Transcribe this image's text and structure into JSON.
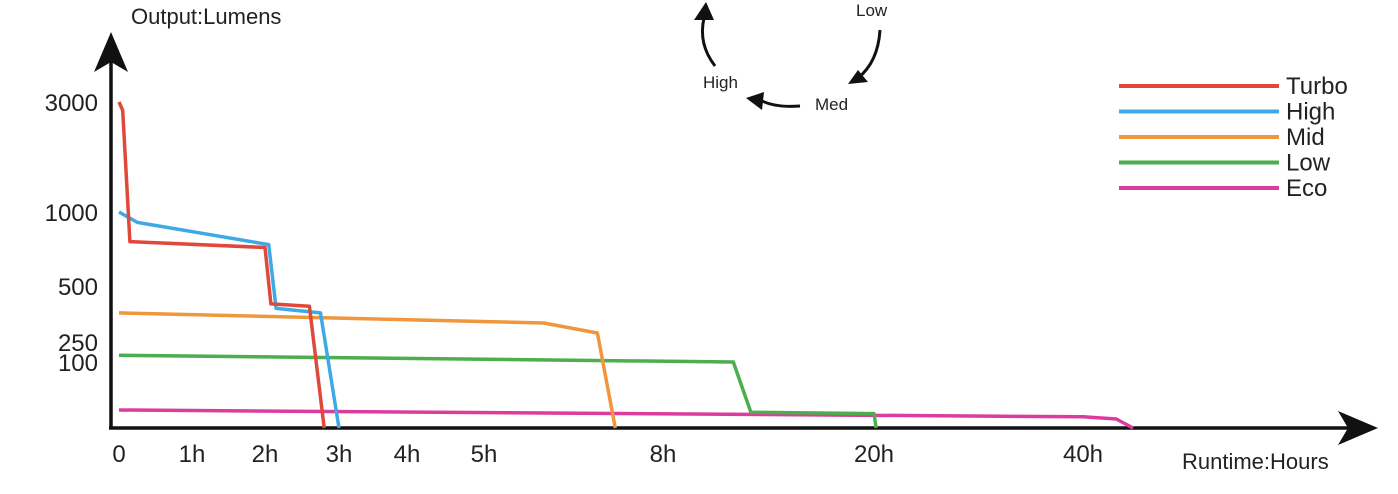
{
  "chart_data": {
    "type": "line",
    "ylabel": "Output:Lumens",
    "xlabel": "Runtime:Hours",
    "y_scale": "nonlinear",
    "y_ticks": [
      {
        "value": 3000,
        "label": "3000"
      },
      {
        "value": 1000,
        "label": "1000"
      },
      {
        "value": 500,
        "label": "500"
      },
      {
        "value": 250,
        "label": "250"
      },
      {
        "value": 100,
        "label": "100"
      }
    ],
    "x_scale": "nonlinear",
    "x_ticks": [
      {
        "value": 0,
        "label": "0"
      },
      {
        "value": 1,
        "label": "1h"
      },
      {
        "value": 2,
        "label": "2h"
      },
      {
        "value": 3,
        "label": "3h"
      },
      {
        "value": 4,
        "label": "4h"
      },
      {
        "value": 5,
        "label": "5h"
      },
      {
        "value": 8,
        "label": "8h"
      },
      {
        "value": 20,
        "label": "20h"
      },
      {
        "value": 40,
        "label": "40h"
      }
    ],
    "grid": false,
    "legend_position": "top-right",
    "series": [
      {
        "name": "Turbo",
        "color": "#e0483a",
        "points": [
          [
            0,
            3000
          ],
          [
            0.05,
            2850
          ],
          [
            0.15,
            800
          ],
          [
            2.0,
            760
          ],
          [
            2.08,
            420
          ],
          [
            2.6,
            410
          ],
          [
            2.8,
            0
          ]
        ]
      },
      {
        "name": "High",
        "color": "#3fa9e6",
        "points": [
          [
            0,
            1000
          ],
          [
            0.25,
            930
          ],
          [
            2.05,
            780
          ],
          [
            2.15,
            400
          ],
          [
            2.75,
            380
          ],
          [
            3.0,
            0
          ]
        ]
      },
      {
        "name": "Mid",
        "color": "#f0963c",
        "points": [
          [
            0,
            380
          ],
          [
            6.0,
            335
          ],
          [
            6.9,
            290
          ],
          [
            7.2,
            0
          ]
        ]
      },
      {
        "name": "Low",
        "color": "#4cae4c",
        "points": [
          [
            0,
            150
          ],
          [
            12.0,
            100
          ],
          [
            13.0,
            35
          ],
          [
            20.0,
            32
          ],
          [
            20.2,
            0
          ]
        ]
      },
      {
        "name": "Eco",
        "color": "#dc3c9c",
        "points": [
          [
            0,
            40
          ],
          [
            40.0,
            25
          ],
          [
            42.0,
            20
          ],
          [
            43.0,
            0
          ]
        ]
      }
    ]
  },
  "mode_cycle": {
    "labels": [
      "Low",
      "Med",
      "High"
    ]
  },
  "colors": {
    "axis": "#111111",
    "text": "#222222"
  }
}
